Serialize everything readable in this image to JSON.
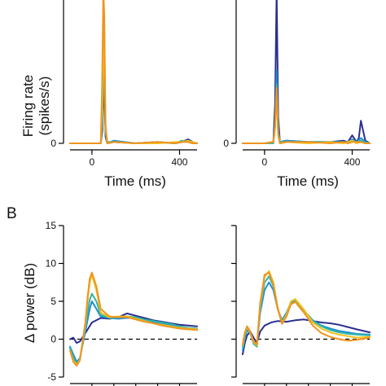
{
  "chart_data": [
    {
      "type": "line",
      "panel": "A-left",
      "xlabel": "Time (ms)",
      "ylabel_line1": "Firing rate",
      "ylabel_line2": "(spikes/s)",
      "xlim": [
        -100,
        480
      ],
      "ylim": [
        0,
        145
      ],
      "x_ticks": [
        0,
        400
      ],
      "x_tick_labels": [
        "0",
        "400"
      ],
      "y_ticks": [
        0
      ],
      "y_tick_labels": [
        "0"
      ],
      "series": [
        {
          "color": "#2b2f8f",
          "x": [
            -100,
            0,
            40,
            48,
            55,
            62,
            70,
            100,
            200,
            300,
            380,
            410,
            440,
            460,
            480
          ],
          "values": [
            0,
            0,
            0,
            10,
            50,
            5,
            0,
            1,
            0,
            1,
            0,
            1,
            3,
            1,
            0
          ]
        },
        {
          "color": "#1f8fd0",
          "x": [
            -100,
            0,
            40,
            48,
            55,
            62,
            70,
            100,
            200,
            300,
            380,
            410,
            440,
            460,
            480
          ],
          "values": [
            0,
            0,
            0,
            15,
            70,
            8,
            0,
            2,
            0,
            1,
            0,
            1,
            2,
            0,
            0
          ]
        },
        {
          "color": "#2fb5a8",
          "x": [
            -100,
            0,
            40,
            48,
            55,
            62,
            70,
            100,
            200,
            300,
            380,
            410,
            440,
            460,
            480
          ],
          "values": [
            0,
            0,
            0,
            20,
            85,
            10,
            1,
            1,
            0,
            1,
            0,
            2,
            1,
            0,
            0
          ]
        },
        {
          "color": "#f2c11a",
          "x": [
            -100,
            0,
            40,
            48,
            55,
            62,
            70,
            100,
            200,
            300,
            380,
            410,
            440,
            460,
            480
          ],
          "values": [
            0,
            0,
            0,
            25,
            100,
            12,
            0,
            1,
            0,
            0,
            1,
            1,
            2,
            1,
            0
          ]
        },
        {
          "color": "#f0941f",
          "x": [
            -100,
            0,
            40,
            46,
            52,
            56,
            62,
            70,
            100,
            200,
            300,
            380,
            410,
            440,
            460,
            480
          ],
          "values": [
            0,
            0,
            0,
            40,
            115,
            98,
            14,
            0,
            1,
            0,
            1,
            0,
            1,
            1,
            0,
            0
          ]
        }
      ]
    },
    {
      "type": "line",
      "panel": "A-right",
      "xlabel": "Time (ms)",
      "xlim": [
        -100,
        480
      ],
      "ylim": [
        0,
        145
      ],
      "x_ticks": [
        0,
        400
      ],
      "x_tick_labels": [
        "0",
        "400"
      ],
      "y_ticks": [
        0
      ],
      "y_tick_labels": [
        "0"
      ],
      "series": [
        {
          "color": "#2b2f8f",
          "x": [
            -100,
            0,
            40,
            48,
            55,
            62,
            70,
            100,
            200,
            300,
            360,
            380,
            400,
            420,
            430,
            440,
            460,
            480
          ],
          "values": [
            0,
            0,
            1,
            30,
            115,
            20,
            1,
            2,
            1,
            1,
            2,
            1,
            6,
            1,
            4,
            17,
            2,
            0
          ]
        },
        {
          "color": "#1f8fd0",
          "x": [
            -100,
            0,
            40,
            48,
            55,
            62,
            70,
            100,
            200,
            300,
            360,
            380,
            400,
            420,
            440,
            460,
            480
          ],
          "values": [
            0,
            0,
            1,
            15,
            55,
            10,
            1,
            2,
            1,
            1,
            1,
            1,
            3,
            1,
            4,
            1,
            0
          ]
        },
        {
          "color": "#2fb5a8",
          "x": [
            -100,
            0,
            40,
            48,
            55,
            62,
            70,
            100,
            200,
            300,
            360,
            380,
            400,
            420,
            440,
            460,
            480
          ],
          "values": [
            0,
            0,
            0,
            14,
            45,
            8,
            1,
            1,
            1,
            1,
            1,
            1,
            2,
            1,
            2,
            1,
            0
          ]
        },
        {
          "color": "#f2c11a",
          "x": [
            -100,
            0,
            40,
            48,
            55,
            62,
            70,
            100,
            200,
            300,
            360,
            380,
            400,
            420,
            440,
            460,
            480
          ],
          "values": [
            0,
            0,
            1,
            12,
            40,
            7,
            0,
            1,
            0,
            1,
            0,
            1,
            2,
            0,
            1,
            0,
            0
          ]
        },
        {
          "color": "#f0941f",
          "x": [
            -100,
            0,
            40,
            48,
            55,
            62,
            70,
            100,
            200,
            300,
            360,
            380,
            400,
            420,
            440,
            460,
            480
          ],
          "values": [
            0,
            0,
            1,
            12,
            42,
            6,
            0,
            1,
            1,
            0,
            1,
            0,
            1,
            1,
            1,
            0,
            0
          ]
        }
      ]
    },
    {
      "type": "line",
      "panel": "B-left",
      "panel_label": "B",
      "ylabel": "Δ power (dB)",
      "xlim": [
        -100,
        480
      ],
      "ylim": [
        -5,
        15
      ],
      "y_ticks": [
        -5,
        0,
        5,
        10,
        15
      ],
      "y_tick_labels": [
        "-5",
        "0",
        "5",
        "10",
        "15"
      ],
      "x_ticks": [
        0,
        100,
        200,
        300,
        400
      ],
      "zero_line": "dashed",
      "series": [
        {
          "color": "#2b2f8f",
          "x": [
            -100,
            -85,
            -70,
            -55,
            -30,
            0,
            40,
            80,
            120,
            160,
            200,
            240,
            280,
            320,
            360,
            400,
            440,
            480
          ],
          "values": [
            0,
            0.2,
            -0.5,
            -0.3,
            0.8,
            2.2,
            2.8,
            2.7,
            2.9,
            3.4,
            3.1,
            2.8,
            2.5,
            2.3,
            2.1,
            1.9,
            1.8,
            1.7
          ]
        },
        {
          "color": "#1f8fd0",
          "x": [
            -100,
            -85,
            -70,
            -55,
            -30,
            -20,
            -10,
            0,
            20,
            40,
            80,
            120,
            160,
            200,
            240,
            280,
            320,
            360,
            400,
            440,
            480
          ],
          "values": [
            -1,
            -2,
            -3,
            -2.5,
            1,
            2.5,
            4,
            5,
            4,
            3,
            2.8,
            2.7,
            2.8,
            2.8,
            2.5,
            2.3,
            2.1,
            1.9,
            1.6,
            1.4,
            1.3
          ]
        },
        {
          "color": "#2fb5a8",
          "x": [
            -100,
            -85,
            -70,
            -55,
            -30,
            -20,
            -10,
            0,
            20,
            40,
            80,
            120,
            160,
            200,
            240,
            280,
            320,
            360,
            400,
            440,
            480
          ],
          "values": [
            -1.2,
            -2.5,
            -3.3,
            -2.6,
            1.5,
            3.5,
            5.2,
            6,
            5,
            3.2,
            2.8,
            2.9,
            3,
            2.9,
            2.6,
            2.4,
            2.2,
            2,
            1.7,
            1.5,
            1.4
          ]
        },
        {
          "color": "#f2c11a",
          "x": [
            -100,
            -85,
            -70,
            -55,
            -30,
            -20,
            -10,
            0,
            20,
            40,
            80,
            120,
            160,
            200,
            240,
            280,
            320,
            360,
            400,
            440,
            480
          ],
          "values": [
            -1.5,
            -2.8,
            -3.4,
            -2.7,
            2,
            5,
            7.5,
            8.5,
            6.5,
            3.5,
            2.9,
            3,
            3,
            2.7,
            2.4,
            2.1,
            1.9,
            1.7,
            1.5,
            1.4,
            1.3
          ]
        },
        {
          "color": "#f0941f",
          "x": [
            -100,
            -85,
            -70,
            -55,
            -30,
            -20,
            -10,
            0,
            20,
            40,
            80,
            120,
            160,
            200,
            240,
            280,
            320,
            360,
            400,
            440,
            480
          ],
          "values": [
            -1.5,
            -3,
            -3.5,
            -2.8,
            2.2,
            5.5,
            8,
            8.8,
            7,
            4,
            3,
            2.9,
            2.9,
            2.6,
            2.3,
            2.1,
            1.8,
            1.6,
            1.4,
            1.3,
            1.2
          ]
        }
      ]
    },
    {
      "type": "line",
      "panel": "B-right",
      "xlim": [
        -100,
        480
      ],
      "ylim": [
        -5,
        15
      ],
      "y_ticks": [
        -5,
        0,
        5,
        10,
        15
      ],
      "x_ticks": [
        0,
        100,
        200,
        300,
        400
      ],
      "zero_line": "dashed",
      "series": [
        {
          "color": "#2b2f8f",
          "x": [
            -100,
            -90,
            -80,
            -65,
            -50,
            -35,
            -20,
            0,
            30,
            60,
            100,
            140,
            180,
            220,
            260,
            300,
            340,
            380,
            420,
            480
          ],
          "values": [
            -2,
            -0.5,
            0.5,
            1,
            0.2,
            -0.5,
            1,
            1.8,
            2.2,
            2.4,
            2.3,
            2.5,
            2.6,
            2.4,
            2.2,
            2.1,
            1.9,
            1.6,
            1.3,
            0.9
          ]
        },
        {
          "color": "#1f8fd0",
          "x": [
            -100,
            -90,
            -80,
            -65,
            -50,
            -35,
            -20,
            0,
            20,
            40,
            60,
            80,
            100,
            120,
            140,
            180,
            220,
            260,
            300,
            340,
            380,
            420,
            480
          ],
          "values": [
            -1.5,
            0,
            1.2,
            0.8,
            -0.5,
            -0.8,
            3.5,
            6.5,
            7.5,
            6.5,
            4,
            2.5,
            3.5,
            4.8,
            5,
            3.8,
            2.5,
            1.8,
            1.4,
            1.1,
            0.9,
            0.7,
            0.6
          ]
        },
        {
          "color": "#2fb5a8",
          "x": [
            -100,
            -90,
            -80,
            -65,
            -50,
            -35,
            -20,
            0,
            20,
            40,
            60,
            80,
            100,
            120,
            140,
            180,
            220,
            260,
            300,
            340,
            380,
            420,
            480
          ],
          "values": [
            -1,
            0.5,
            1.5,
            0.8,
            -0.6,
            -1,
            4,
            7.5,
            8.3,
            7,
            4,
            2.2,
            3.4,
            4.9,
            5.1,
            3.8,
            2.4,
            1.7,
            1.2,
            0.9,
            0.7,
            0.6,
            0.5
          ]
        },
        {
          "color": "#f2c11a",
          "x": [
            -100,
            -90,
            -80,
            -65,
            -50,
            -35,
            -20,
            0,
            20,
            40,
            60,
            80,
            100,
            120,
            140,
            180,
            220,
            260,
            300,
            340,
            380,
            420,
            480
          ],
          "values": [
            -0.8,
            0.8,
            1.6,
            0.9,
            -0.4,
            -0.8,
            4.5,
            8.2,
            9,
            7.5,
            4.2,
            2.1,
            3.2,
            5,
            5.3,
            3.9,
            2.2,
            1.4,
            0.9,
            0.6,
            0.4,
            0.2,
            0.3
          ]
        },
        {
          "color": "#f0941f",
          "x": [
            -100,
            -90,
            -80,
            -65,
            -50,
            -35,
            -20,
            0,
            20,
            40,
            60,
            80,
            100,
            120,
            140,
            180,
            220,
            260,
            300,
            340,
            380,
            420,
            480
          ],
          "values": [
            -0.7,
            0.9,
            1.7,
            1,
            -0.3,
            -0.7,
            4.8,
            8.5,
            8.8,
            7.2,
            4,
            2,
            3,
            4.6,
            4.9,
            3.5,
            1.8,
            0.8,
            0.3,
            0,
            -0.2,
            -0.1,
            0.2
          ]
        }
      ]
    }
  ]
}
